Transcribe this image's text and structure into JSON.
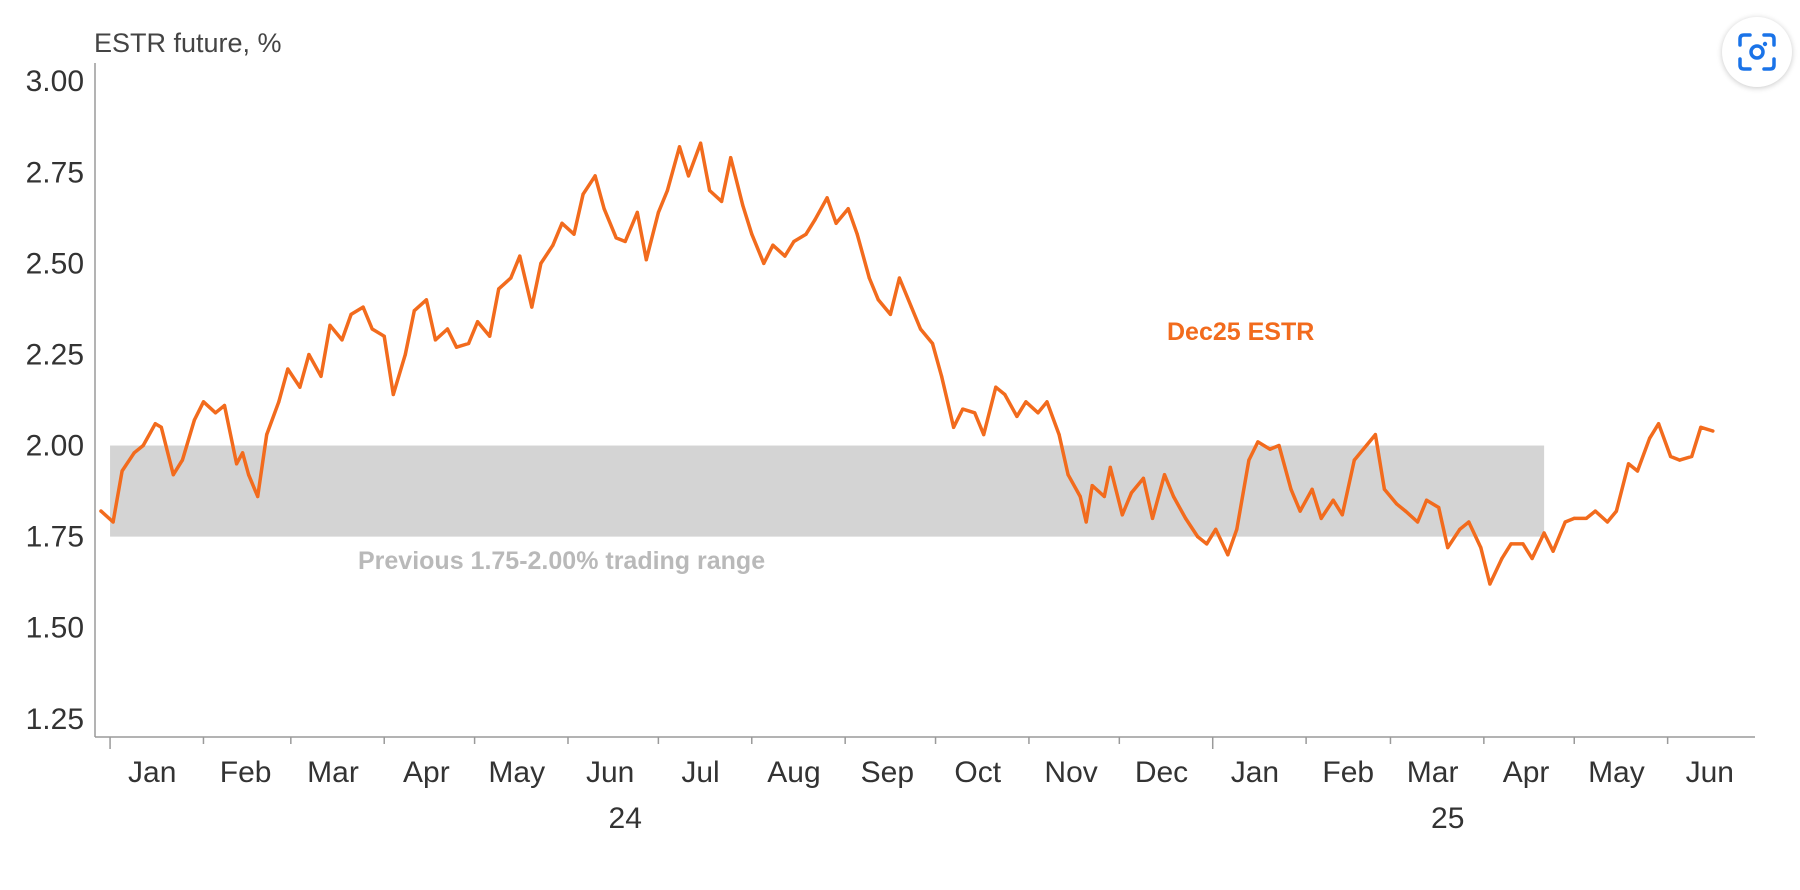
{
  "chart_data": {
    "type": "line",
    "ylabel": "ESTR future, %",
    "ylim": [
      1.2,
      3.05
    ],
    "yticks": [
      "1.25",
      "1.50",
      "1.75",
      "2.00",
      "2.25",
      "2.50",
      "2.75",
      "3.00"
    ],
    "xlim": [
      "2023-12-27",
      "2025-06-30"
    ],
    "month_ticks": [
      {
        "label": "Jan",
        "date": "2024-01-15"
      },
      {
        "label": "Feb",
        "date": "2024-02-15"
      },
      {
        "label": "Mar",
        "date": "2024-03-15"
      },
      {
        "label": "Apr",
        "date": "2024-04-15"
      },
      {
        "label": "May",
        "date": "2024-05-15"
      },
      {
        "label": "Jun",
        "date": "2024-06-15"
      },
      {
        "label": "Jul",
        "date": "2024-07-15"
      },
      {
        "label": "Aug",
        "date": "2024-08-15"
      },
      {
        "label": "Sep",
        "date": "2024-09-15"
      },
      {
        "label": "Oct",
        "date": "2024-10-15"
      },
      {
        "label": "Nov",
        "date": "2024-11-15"
      },
      {
        "label": "Dec",
        "date": "2024-12-15"
      },
      {
        "label": "Jan",
        "date": "2025-01-15"
      },
      {
        "label": "Feb",
        "date": "2025-02-15"
      },
      {
        "label": "Mar",
        "date": "2025-03-15"
      },
      {
        "label": "Apr",
        "date": "2025-04-15"
      },
      {
        "label": "May",
        "date": "2025-05-15"
      },
      {
        "label": "Jun",
        "date": "2025-06-15"
      }
    ],
    "year_labels": [
      {
        "label": "24",
        "date": "2024-06-20"
      },
      {
        "label": "25",
        "date": "2025-03-20"
      }
    ],
    "band": {
      "from": 1.75,
      "to": 2.0,
      "x_start": "2024-01-01",
      "x_end": "2025-04-21",
      "label": "Previous 1.75-2.00% trading range",
      "color": "#d4d4d4"
    },
    "series": [
      {
        "name": "Dec25 ESTR",
        "color": "#f26b1d",
        "points": [
          [
            "2023-12-29",
            1.82
          ],
          [
            "2024-01-02",
            1.79
          ],
          [
            "2024-01-05",
            1.93
          ],
          [
            "2024-01-09",
            1.98
          ],
          [
            "2024-01-12",
            2.0
          ],
          [
            "2024-01-16",
            2.06
          ],
          [
            "2024-01-18",
            2.05
          ],
          [
            "2024-01-22",
            1.92
          ],
          [
            "2024-01-25",
            1.96
          ],
          [
            "2024-01-29",
            2.07
          ],
          [
            "2024-02-01",
            2.12
          ],
          [
            "2024-02-05",
            2.09
          ],
          [
            "2024-02-08",
            2.11
          ],
          [
            "2024-02-12",
            1.95
          ],
          [
            "2024-02-14",
            1.98
          ],
          [
            "2024-02-16",
            1.92
          ],
          [
            "2024-02-19",
            1.86
          ],
          [
            "2024-02-22",
            2.03
          ],
          [
            "2024-02-26",
            2.12
          ],
          [
            "2024-02-29",
            2.21
          ],
          [
            "2024-03-04",
            2.16
          ],
          [
            "2024-03-07",
            2.25
          ],
          [
            "2024-03-11",
            2.19
          ],
          [
            "2024-03-14",
            2.33
          ],
          [
            "2024-03-18",
            2.29
          ],
          [
            "2024-03-21",
            2.36
          ],
          [
            "2024-03-25",
            2.38
          ],
          [
            "2024-03-28",
            2.32
          ],
          [
            "2024-04-01",
            2.3
          ],
          [
            "2024-04-04",
            2.14
          ],
          [
            "2024-04-08",
            2.25
          ],
          [
            "2024-04-11",
            2.37
          ],
          [
            "2024-04-15",
            2.4
          ],
          [
            "2024-04-18",
            2.29
          ],
          [
            "2024-04-22",
            2.32
          ],
          [
            "2024-04-25",
            2.27
          ],
          [
            "2024-04-29",
            2.28
          ],
          [
            "2024-05-02",
            2.34
          ],
          [
            "2024-05-06",
            2.3
          ],
          [
            "2024-05-09",
            2.43
          ],
          [
            "2024-05-13",
            2.46
          ],
          [
            "2024-05-16",
            2.52
          ],
          [
            "2024-05-20",
            2.38
          ],
          [
            "2024-05-23",
            2.5
          ],
          [
            "2024-05-27",
            2.55
          ],
          [
            "2024-05-30",
            2.61
          ],
          [
            "2024-06-03",
            2.58
          ],
          [
            "2024-06-06",
            2.69
          ],
          [
            "2024-06-10",
            2.74
          ],
          [
            "2024-06-13",
            2.65
          ],
          [
            "2024-06-17",
            2.57
          ],
          [
            "2024-06-20",
            2.56
          ],
          [
            "2024-06-24",
            2.64
          ],
          [
            "2024-06-27",
            2.51
          ],
          [
            "2024-07-01",
            2.64
          ],
          [
            "2024-07-04",
            2.7
          ],
          [
            "2024-07-08",
            2.82
          ],
          [
            "2024-07-11",
            2.74
          ],
          [
            "2024-07-15",
            2.83
          ],
          [
            "2024-07-18",
            2.7
          ],
          [
            "2024-07-22",
            2.67
          ],
          [
            "2024-07-25",
            2.79
          ],
          [
            "2024-07-29",
            2.66
          ],
          [
            "2024-08-01",
            2.58
          ],
          [
            "2024-08-05",
            2.5
          ],
          [
            "2024-08-08",
            2.55
          ],
          [
            "2024-08-12",
            2.52
          ],
          [
            "2024-08-15",
            2.56
          ],
          [
            "2024-08-19",
            2.58
          ],
          [
            "2024-08-22",
            2.62
          ],
          [
            "2024-08-26",
            2.68
          ],
          [
            "2024-08-29",
            2.61
          ],
          [
            "2024-09-02",
            2.65
          ],
          [
            "2024-09-05",
            2.58
          ],
          [
            "2024-09-09",
            2.46
          ],
          [
            "2024-09-12",
            2.4
          ],
          [
            "2024-09-16",
            2.36
          ],
          [
            "2024-09-19",
            2.46
          ],
          [
            "2024-09-23",
            2.38
          ],
          [
            "2024-09-26",
            2.32
          ],
          [
            "2024-09-30",
            2.28
          ],
          [
            "2024-10-03",
            2.19
          ],
          [
            "2024-10-07",
            2.05
          ],
          [
            "2024-10-10",
            2.1
          ],
          [
            "2024-10-14",
            2.09
          ],
          [
            "2024-10-17",
            2.03
          ],
          [
            "2024-10-21",
            2.16
          ],
          [
            "2024-10-24",
            2.14
          ],
          [
            "2024-10-28",
            2.08
          ],
          [
            "2024-10-31",
            2.12
          ],
          [
            "2024-11-04",
            2.09
          ],
          [
            "2024-11-07",
            2.12
          ],
          [
            "2024-11-11",
            2.03
          ],
          [
            "2024-11-14",
            1.92
          ],
          [
            "2024-11-18",
            1.86
          ],
          [
            "2024-11-20",
            1.79
          ],
          [
            "2024-11-22",
            1.89
          ],
          [
            "2024-11-26",
            1.86
          ],
          [
            "2024-11-28",
            1.94
          ],
          [
            "2024-12-02",
            1.81
          ],
          [
            "2024-12-05",
            1.87
          ],
          [
            "2024-12-09",
            1.91
          ],
          [
            "2024-12-12",
            1.8
          ],
          [
            "2024-12-16",
            1.92
          ],
          [
            "2024-12-19",
            1.86
          ],
          [
            "2024-12-23",
            1.8
          ],
          [
            "2024-12-27",
            1.75
          ],
          [
            "2024-12-30",
            1.73
          ],
          [
            "2025-01-02",
            1.77
          ],
          [
            "2025-01-06",
            1.7
          ],
          [
            "2025-01-09",
            1.77
          ],
          [
            "2025-01-13",
            1.96
          ],
          [
            "2025-01-16",
            2.01
          ],
          [
            "2025-01-20",
            1.99
          ],
          [
            "2025-01-23",
            2.0
          ],
          [
            "2025-01-27",
            1.88
          ],
          [
            "2025-01-30",
            1.82
          ],
          [
            "2025-02-03",
            1.88
          ],
          [
            "2025-02-06",
            1.8
          ],
          [
            "2025-02-10",
            1.85
          ],
          [
            "2025-02-13",
            1.81
          ],
          [
            "2025-02-17",
            1.96
          ],
          [
            "2025-02-20",
            1.99
          ],
          [
            "2025-02-24",
            2.03
          ],
          [
            "2025-02-27",
            1.88
          ],
          [
            "2025-03-03",
            1.84
          ],
          [
            "2025-03-06",
            1.82
          ],
          [
            "2025-03-10",
            1.79
          ],
          [
            "2025-03-13",
            1.85
          ],
          [
            "2025-03-17",
            1.83
          ],
          [
            "2025-03-20",
            1.72
          ],
          [
            "2025-03-24",
            1.77
          ],
          [
            "2025-03-27",
            1.79
          ],
          [
            "2025-03-31",
            1.72
          ],
          [
            "2025-04-03",
            1.62
          ],
          [
            "2025-04-07",
            1.69
          ],
          [
            "2025-04-10",
            1.73
          ],
          [
            "2025-04-14",
            1.73
          ],
          [
            "2025-04-17",
            1.69
          ],
          [
            "2025-04-21",
            1.76
          ],
          [
            "2025-04-24",
            1.71
          ],
          [
            "2025-04-28",
            1.79
          ],
          [
            "2025-05-01",
            1.8
          ],
          [
            "2025-05-05",
            1.8
          ],
          [
            "2025-05-08",
            1.82
          ],
          [
            "2025-05-12",
            1.79
          ],
          [
            "2025-05-15",
            1.82
          ],
          [
            "2025-05-19",
            1.95
          ],
          [
            "2025-05-22",
            1.93
          ],
          [
            "2025-05-26",
            2.02
          ],
          [
            "2025-05-29",
            2.06
          ],
          [
            "2025-06-02",
            1.97
          ],
          [
            "2025-06-05",
            1.96
          ],
          [
            "2025-06-09",
            1.97
          ],
          [
            "2025-06-12",
            2.05
          ],
          [
            "2025-06-16",
            2.04
          ]
        ]
      }
    ]
  },
  "lens_button": {
    "icon": "visual-search-icon"
  }
}
